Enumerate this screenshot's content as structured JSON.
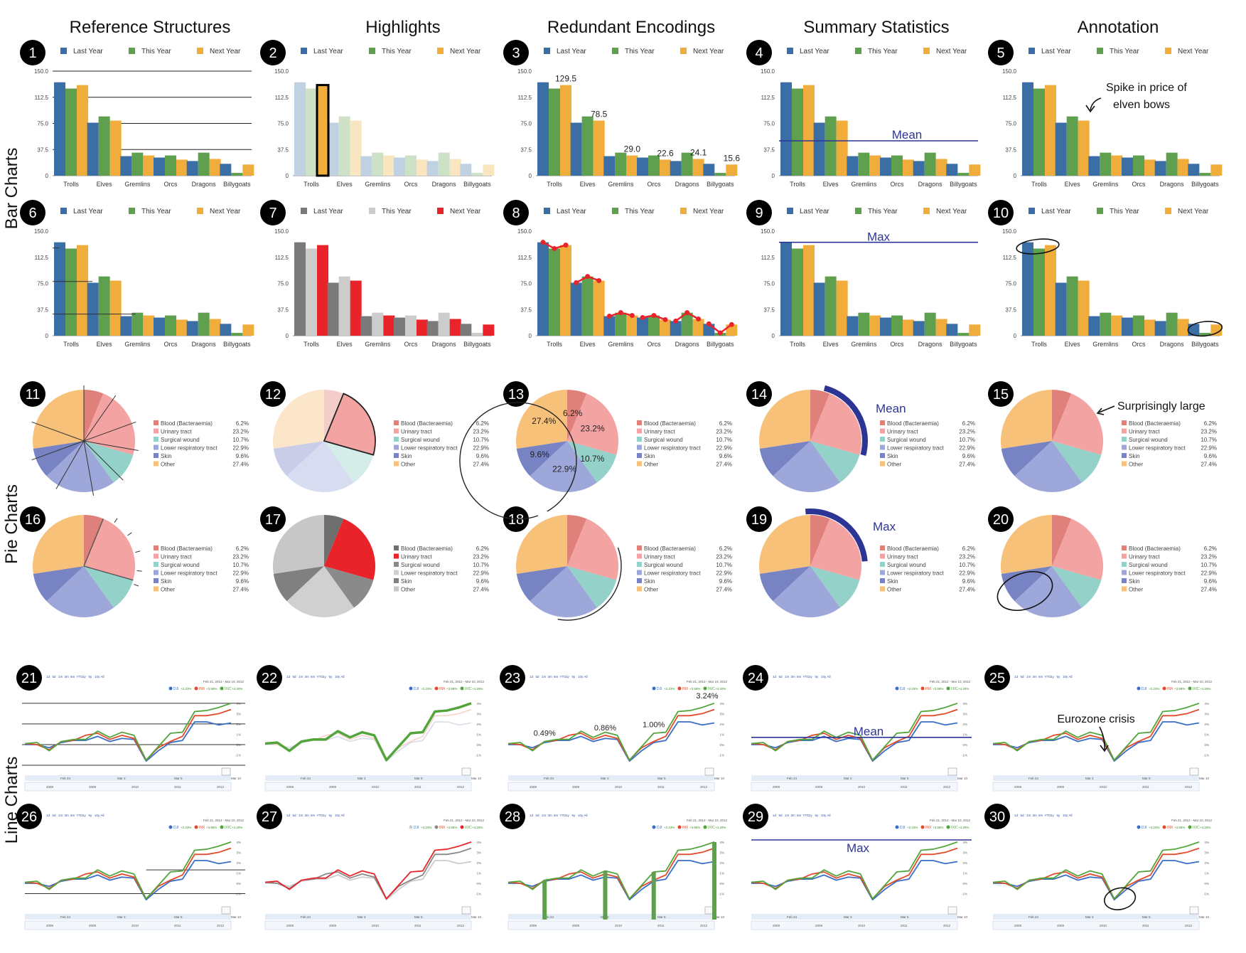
{
  "columns": [
    "Reference Structures",
    "Highlights",
    "Redundant Encodings",
    "Summary Statistics",
    "Annotation"
  ],
  "rows": [
    "Bar Charts",
    "Pie Charts",
    "Line Charts"
  ],
  "colors": {
    "last_year": "#3b6ea5",
    "this_year": "#5fa04e",
    "next_year": "#f0ad3c",
    "annotation_blue": "#2d3594",
    "highlight_red": "#e8232a",
    "highlight_grey": "#7a7a7a",
    "dji": "#3a6fc6",
    "inx": "#e24a2c",
    "ixic": "#52a53b"
  },
  "bar_chart": {
    "categories": [
      "Trolls",
      "Elves",
      "Gremlins",
      "Orcs",
      "Dragons",
      "Billygoats"
    ],
    "series": [
      {
        "name": "Last Year",
        "values": [
          134,
          76,
          28,
          26,
          21,
          17
        ]
      },
      {
        "name": "This Year",
        "values": [
          125,
          85,
          33,
          29,
          33,
          4
        ]
      },
      {
        "name": "Next Year",
        "values": [
          130,
          79,
          29,
          23,
          24,
          16
        ]
      }
    ],
    "y_ticks": [
      "150.0",
      "112.5",
      "75.0",
      "37.5",
      "0"
    ],
    "ylim": [
      0,
      150
    ],
    "value_labels": [
      "129.5",
      "78.5",
      "29.0",
      "22.6",
      "24.1",
      "15.6"
    ],
    "mean_label": "Mean",
    "max_label": "Max",
    "annotation_text_line1": "Spike in price of",
    "annotation_text_line2": "elven bows"
  },
  "pie_chart": {
    "type": "pie",
    "slices": [
      {
        "label": "Blood (Bacteraemia)",
        "value": 6.2,
        "value_label": "6.2%",
        "color": "#df817a"
      },
      {
        "label": "Urinary tract",
        "value": 23.2,
        "value_label": "23.2%",
        "color": "#f4a3a3"
      },
      {
        "label": "Surgical wound",
        "value": 10.7,
        "value_label": "10.7%",
        "color": "#94d1c8"
      },
      {
        "label": "Lower respiratory tract",
        "value": 22.9,
        "value_label": "22.9%",
        "color": "#9ea7d9"
      },
      {
        "label": "Skin",
        "value": 9.6,
        "value_label": "9.6%",
        "color": "#7883c4"
      },
      {
        "label": "Other",
        "value": 27.4,
        "value_label": "27.4%",
        "color": "#f7c17a"
      }
    ],
    "mean_label": "Mean",
    "max_label": "Max",
    "annotation_text": "Surprisingly large"
  },
  "line_chart": {
    "type": "line",
    "x": [
      0,
      1,
      2,
      3,
      4,
      5,
      6,
      7,
      8,
      9,
      10,
      11,
      12,
      13,
      14,
      15,
      16,
      17
    ],
    "series": [
      {
        "name": "DJI",
        "change_label": "+2.23%",
        "values": [
          0.0,
          0.0,
          -0.3,
          0.2,
          0.4,
          0.4,
          0.8,
          0.3,
          0.6,
          0.5,
          -1.6,
          -0.6,
          0.2,
          0.4,
          2.2,
          2.2,
          1.9,
          2.1
        ]
      },
      {
        "name": "INX",
        "change_label": "+3.58%",
        "values": [
          0.1,
          0.0,
          -0.5,
          0.3,
          0.4,
          0.9,
          1.1,
          0.5,
          0.9,
          0.6,
          -1.5,
          -0.3,
          0.3,
          0.8,
          2.8,
          2.8,
          3.0,
          3.4
        ]
      },
      {
        "name": "IXIC",
        "change_label": "+4.20%",
        "values": [
          0.1,
          0.2,
          -0.6,
          0.3,
          0.5,
          0.5,
          1.3,
          0.7,
          1.2,
          0.9,
          -1.5,
          -0.2,
          1.1,
          1.2,
          3.2,
          3.3,
          3.6,
          4.0
        ]
      }
    ],
    "zoom_links": [
      "1d",
      "5d",
      "1m",
      "3m",
      "6m",
      "YTD",
      "1y",
      "5y",
      "10y",
      "All"
    ],
    "date_range": "Feb 21, 2012 - Mar 10, 2012",
    "y_ticks": [
      "4%",
      "3%",
      "2%",
      "1%",
      "0%",
      "-1%"
    ],
    "x_ticks": [
      "Feb 24",
      "Mar 2",
      "Mar 5",
      "Mar 10"
    ],
    "overview_years": [
      "2008",
      "2009",
      "2010",
      "2011",
      "2012"
    ],
    "value_labels": [
      "0.49%",
      "0.86%",
      "1.00%",
      "3.24%"
    ],
    "mean_label": "Mean",
    "max_label": "Max",
    "annotation_text": "Eurozone crisis"
  }
}
